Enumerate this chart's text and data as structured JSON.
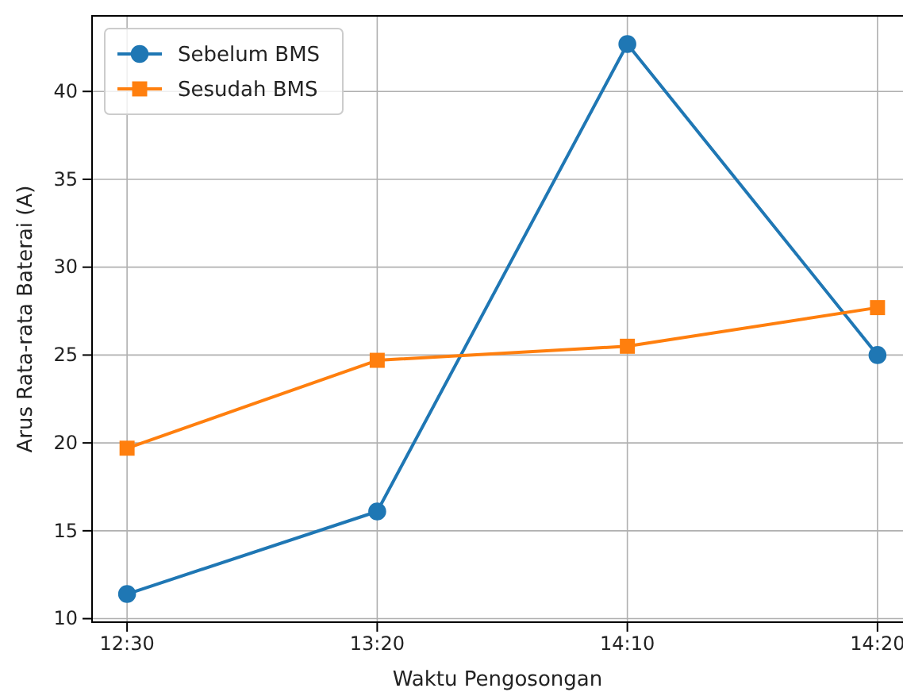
{
  "chart_data": {
    "type": "line",
    "xlabel": "Waktu Pengosongan",
    "ylabel": "Arus Rata-rata Baterai (A)",
    "categories": [
      "12:30",
      "13:20",
      "14:10",
      "14:20"
    ],
    "series": [
      {
        "name": "Sebelum BMS",
        "color": "#1f77b4",
        "marker": "circle",
        "values": [
          11.4,
          16.1,
          42.7,
          25.0
        ]
      },
      {
        "name": "Sesudah BMS",
        "color": "#ff7f0e",
        "marker": "square",
        "values": [
          19.7,
          24.7,
          25.5,
          27.7
        ]
      }
    ],
    "ylim": [
      9.8,
      44.3
    ],
    "yticks": [
      10,
      15,
      20,
      25,
      30,
      35,
      40
    ],
    "grid": true,
    "legend": "top left",
    "line_style": "solid"
  }
}
